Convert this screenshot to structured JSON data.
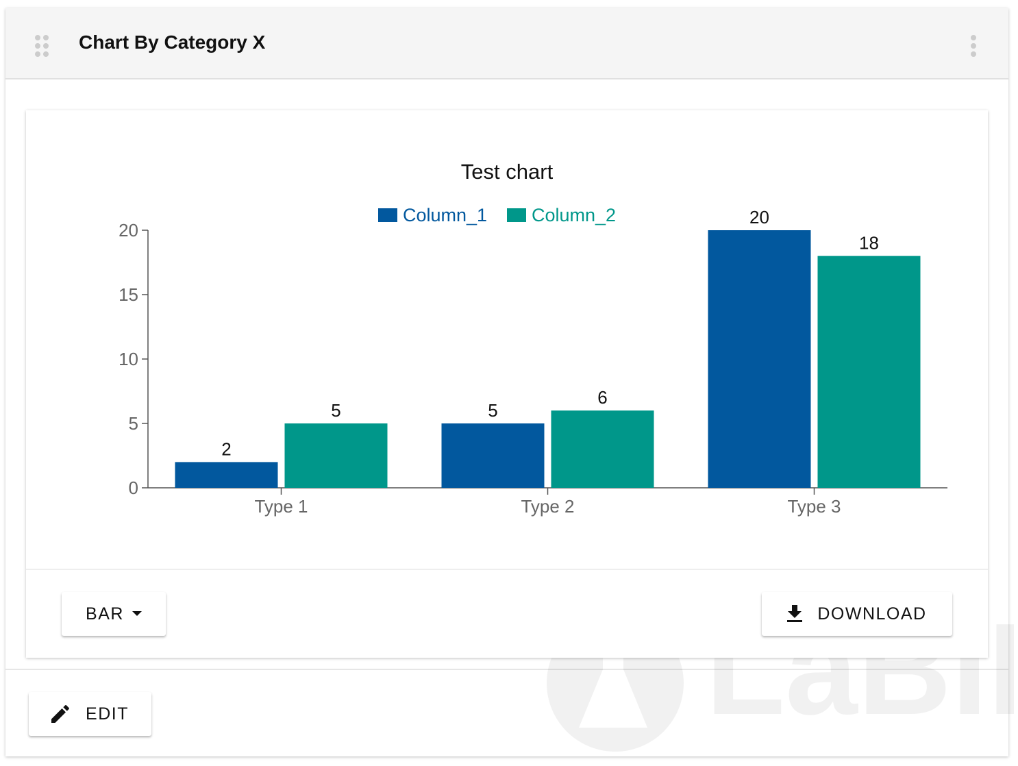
{
  "header": {
    "title": "Chart By Category X",
    "drag_icon": "drag-handle-icon",
    "menu_icon": "more-vertical-icon"
  },
  "chart_data": {
    "type": "bar",
    "title": "Test chart",
    "categories": [
      "Type 1",
      "Type 2",
      "Type 3"
    ],
    "series": [
      {
        "name": "Column_1",
        "values": [
          2,
          5,
          20
        ],
        "color": "#02589e"
      },
      {
        "name": "Column_2",
        "values": [
          5,
          6,
          18
        ],
        "color": "#00978a"
      }
    ],
    "ylim": [
      0,
      20
    ],
    "yticks": [
      0,
      5,
      10,
      15,
      20
    ],
    "grid": false,
    "legend": "top",
    "data_labels": true
  },
  "footer": {
    "chart_type_label": "BAR",
    "download_label": "DOWNLOAD",
    "edit_label": "EDIT"
  },
  "watermark": {
    "text": "LaBII"
  }
}
